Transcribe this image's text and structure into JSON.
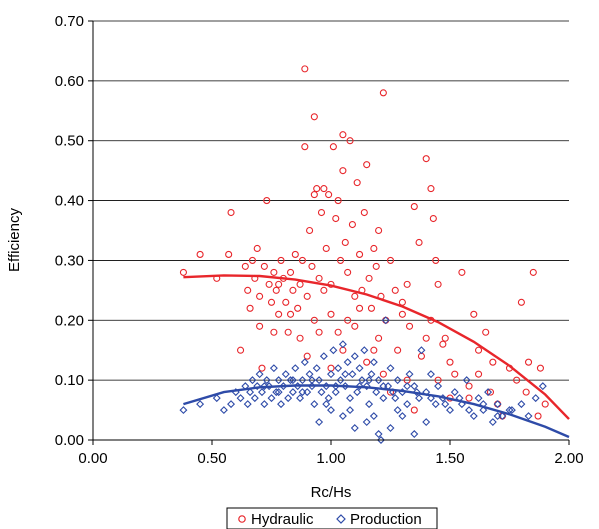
{
  "chart_data": {
    "type": "scatter",
    "xlabel": "Rc/Hs",
    "ylabel": "Efficiency",
    "xlim": [
      0,
      2
    ],
    "ylim": [
      0,
      0.7
    ],
    "x_ticks": [
      "0.00",
      "0.50",
      "1.00",
      "1.50",
      "2.00"
    ],
    "y_ticks": [
      "0.00",
      "0.10",
      "0.20",
      "0.30",
      "0.40",
      "0.50",
      "0.60",
      "0.70"
    ],
    "grid": "horizontal",
    "legend_position": "bottom",
    "series": [
      {
        "name": "Hydraulic",
        "marker": "circle",
        "color": "#e8262b",
        "points": [
          [
            0.38,
            0.28
          ],
          [
            0.45,
            0.31
          ],
          [
            0.52,
            0.27
          ],
          [
            0.57,
            0.31
          ],
          [
            0.58,
            0.38
          ],
          [
            0.62,
            0.15
          ],
          [
            0.64,
            0.29
          ],
          [
            0.65,
            0.25
          ],
          [
            0.66,
            0.22
          ],
          [
            0.67,
            0.3
          ],
          [
            0.68,
            0.27
          ],
          [
            0.69,
            0.32
          ],
          [
            0.7,
            0.24
          ],
          [
            0.7,
            0.19
          ],
          [
            0.71,
            0.12
          ],
          [
            0.72,
            0.29
          ],
          [
            0.73,
            0.4
          ],
          [
            0.74,
            0.26
          ],
          [
            0.75,
            0.23
          ],
          [
            0.76,
            0.28
          ],
          [
            0.77,
            0.25
          ],
          [
            0.78,
            0.21
          ],
          [
            0.79,
            0.3
          ],
          [
            0.8,
            0.27
          ],
          [
            0.81,
            0.23
          ],
          [
            0.82,
            0.18
          ],
          [
            0.83,
            0.28
          ],
          [
            0.84,
            0.25
          ],
          [
            0.85,
            0.31
          ],
          [
            0.86,
            0.22
          ],
          [
            0.87,
            0.26
          ],
          [
            0.88,
            0.3
          ],
          [
            0.89,
            0.62
          ],
          [
            0.89,
            0.49
          ],
          [
            0.9,
            0.24
          ],
          [
            0.91,
            0.35
          ],
          [
            0.92,
            0.29
          ],
          [
            0.93,
            0.54
          ],
          [
            0.93,
            0.41
          ],
          [
            0.94,
            0.42
          ],
          [
            0.95,
            0.27
          ],
          [
            0.96,
            0.38
          ],
          [
            0.97,
            0.42
          ],
          [
            0.98,
            0.32
          ],
          [
            0.99,
            0.41
          ],
          [
            1.0,
            0.26
          ],
          [
            1.01,
            0.49
          ],
          [
            1.02,
            0.37
          ],
          [
            1.03,
            0.4
          ],
          [
            1.04,
            0.3
          ],
          [
            1.05,
            0.51
          ],
          [
            1.05,
            0.45
          ],
          [
            1.06,
            0.33
          ],
          [
            1.07,
            0.28
          ],
          [
            1.08,
            0.5
          ],
          [
            1.09,
            0.36
          ],
          [
            1.1,
            0.24
          ],
          [
            1.11,
            0.43
          ],
          [
            1.12,
            0.31
          ],
          [
            1.13,
            0.25
          ],
          [
            1.14,
            0.38
          ],
          [
            1.15,
            0.46
          ],
          [
            1.16,
            0.27
          ],
          [
            1.17,
            0.22
          ],
          [
            1.18,
            0.32
          ],
          [
            1.19,
            0.29
          ],
          [
            1.2,
            0.35
          ],
          [
            1.21,
            0.24
          ],
          [
            1.22,
            0.58
          ],
          [
            1.23,
            0.2
          ],
          [
            1.25,
            0.3
          ],
          [
            1.27,
            0.25
          ],
          [
            1.3,
            0.23
          ],
          [
            1.32,
            0.26
          ],
          [
            1.33,
            0.19
          ],
          [
            1.35,
            0.39
          ],
          [
            1.37,
            0.33
          ],
          [
            1.4,
            0.47
          ],
          [
            1.42,
            0.42
          ],
          [
            1.43,
            0.37
          ],
          [
            1.44,
            0.3
          ],
          [
            1.45,
            0.26
          ],
          [
            1.47,
            0.16
          ],
          [
            1.5,
            0.13
          ],
          [
            1.55,
            0.28
          ],
          [
            1.58,
            0.09
          ],
          [
            1.6,
            0.21
          ],
          [
            1.62,
            0.11
          ],
          [
            1.65,
            0.18
          ],
          [
            1.68,
            0.13
          ],
          [
            1.7,
            0.06
          ],
          [
            1.75,
            0.12
          ],
          [
            1.8,
            0.23
          ],
          [
            1.82,
            0.08
          ],
          [
            1.85,
            0.28
          ],
          [
            1.88,
            0.12
          ],
          [
            1.9,
            0.06
          ],
          [
            0.95,
            0.18
          ],
          [
            1.0,
            0.12
          ],
          [
            1.05,
            0.15
          ],
          [
            1.1,
            0.19
          ],
          [
            1.15,
            0.13
          ],
          [
            1.2,
            0.17
          ],
          [
            1.25,
            0.08
          ],
          [
            1.3,
            0.21
          ],
          [
            1.35,
            0.05
          ],
          [
            1.4,
            0.17
          ],
          [
            1.45,
            0.1
          ],
          [
            1.5,
            0.07
          ],
          [
            0.76,
            0.18
          ],
          [
            0.9,
            0.14
          ],
          [
            1.12,
            0.22
          ],
          [
            1.0,
            0.21
          ],
          [
            1.07,
            0.2
          ],
          [
            1.03,
            0.18
          ],
          [
            0.97,
            0.25
          ],
          [
            0.93,
            0.2
          ],
          [
            0.87,
            0.17
          ],
          [
            0.83,
            0.21
          ],
          [
            0.78,
            0.26
          ],
          [
            1.18,
            0.15
          ],
          [
            1.22,
            0.11
          ],
          [
            1.28,
            0.15
          ],
          [
            1.32,
            0.1
          ],
          [
            1.38,
            0.14
          ],
          [
            1.42,
            0.2
          ],
          [
            1.48,
            0.17
          ],
          [
            1.52,
            0.11
          ],
          [
            1.58,
            0.07
          ],
          [
            1.62,
            0.15
          ],
          [
            1.67,
            0.08
          ],
          [
            1.72,
            0.04
          ],
          [
            1.78,
            0.1
          ],
          [
            1.83,
            0.13
          ],
          [
            1.87,
            0.04
          ]
        ]
      },
      {
        "name": "Production",
        "marker": "diamond",
        "color": "#2e4ba8",
        "points": [
          [
            0.38,
            0.05
          ],
          [
            0.45,
            0.06
          ],
          [
            0.52,
            0.07
          ],
          [
            0.55,
            0.05
          ],
          [
            0.58,
            0.06
          ],
          [
            0.6,
            0.08
          ],
          [
            0.62,
            0.07
          ],
          [
            0.64,
            0.09
          ],
          [
            0.65,
            0.06
          ],
          [
            0.66,
            0.08
          ],
          [
            0.67,
            0.1
          ],
          [
            0.68,
            0.07
          ],
          [
            0.69,
            0.09
          ],
          [
            0.7,
            0.11
          ],
          [
            0.71,
            0.08
          ],
          [
            0.72,
            0.06
          ],
          [
            0.73,
            0.1
          ],
          [
            0.74,
            0.09
          ],
          [
            0.75,
            0.07
          ],
          [
            0.76,
            0.12
          ],
          [
            0.77,
            0.08
          ],
          [
            0.78,
            0.1
          ],
          [
            0.79,
            0.06
          ],
          [
            0.8,
            0.09
          ],
          [
            0.81,
            0.11
          ],
          [
            0.82,
            0.07
          ],
          [
            0.83,
            0.1
          ],
          [
            0.84,
            0.08
          ],
          [
            0.85,
            0.12
          ],
          [
            0.86,
            0.09
          ],
          [
            0.87,
            0.07
          ],
          [
            0.88,
            0.1
          ],
          [
            0.89,
            0.13
          ],
          [
            0.9,
            0.08
          ],
          [
            0.91,
            0.11
          ],
          [
            0.92,
            0.09
          ],
          [
            0.93,
            0.06
          ],
          [
            0.94,
            0.12
          ],
          [
            0.95,
            0.1
          ],
          [
            0.96,
            0.08
          ],
          [
            0.97,
            0.14
          ],
          [
            0.98,
            0.09
          ],
          [
            0.99,
            0.07
          ],
          [
            1.0,
            0.11
          ],
          [
            1.01,
            0.15
          ],
          [
            1.02,
            0.08
          ],
          [
            1.03,
            0.12
          ],
          [
            1.04,
            0.1
          ],
          [
            1.05,
            0.16
          ],
          [
            1.06,
            0.09
          ],
          [
            1.07,
            0.13
          ],
          [
            1.08,
            0.07
          ],
          [
            1.09,
            0.11
          ],
          [
            1.1,
            0.14
          ],
          [
            1.11,
            0.08
          ],
          [
            1.12,
            0.12
          ],
          [
            1.13,
            0.1
          ],
          [
            1.14,
            0.15
          ],
          [
            1.15,
            0.09
          ],
          [
            1.16,
            0.06
          ],
          [
            1.17,
            0.11
          ],
          [
            1.18,
            0.13
          ],
          [
            1.19,
            0.08
          ],
          [
            1.2,
            0.1
          ],
          [
            1.21,
            0.0
          ],
          [
            1.22,
            0.07
          ],
          [
            1.23,
            0.2
          ],
          [
            1.24,
            0.09
          ],
          [
            1.25,
            0.12
          ],
          [
            1.27,
            0.07
          ],
          [
            1.28,
            0.1
          ],
          [
            1.3,
            0.08
          ],
          [
            1.32,
            0.06
          ],
          [
            1.33,
            0.11
          ],
          [
            1.35,
            0.09
          ],
          [
            1.37,
            0.07
          ],
          [
            1.38,
            0.15
          ],
          [
            1.4,
            0.08
          ],
          [
            1.42,
            0.11
          ],
          [
            1.44,
            0.06
          ],
          [
            1.45,
            0.09
          ],
          [
            1.47,
            0.07
          ],
          [
            1.5,
            0.05
          ],
          [
            1.52,
            0.08
          ],
          [
            1.55,
            0.06
          ],
          [
            1.57,
            0.1
          ],
          [
            1.6,
            0.04
          ],
          [
            1.62,
            0.07
          ],
          [
            1.64,
            0.05
          ],
          [
            1.66,
            0.08
          ],
          [
            1.68,
            0.03
          ],
          [
            1.7,
            0.06
          ],
          [
            1.72,
            0.04
          ],
          [
            1.75,
            0.05
          ],
          [
            1.8,
            0.06
          ],
          [
            1.83,
            0.04
          ],
          [
            1.86,
            0.07
          ],
          [
            1.89,
            0.09
          ],
          [
            0.95,
            0.03
          ],
          [
            1.0,
            0.05
          ],
          [
            1.05,
            0.04
          ],
          [
            1.1,
            0.02
          ],
          [
            1.15,
            0.03
          ],
          [
            1.2,
            0.01
          ],
          [
            1.25,
            0.02
          ],
          [
            1.3,
            0.04
          ],
          [
            1.35,
            0.01
          ],
          [
            1.4,
            0.03
          ],
          [
            0.98,
            0.06
          ],
          [
            1.08,
            0.05
          ],
          [
            1.18,
            0.04
          ],
          [
            1.28,
            0.05
          ],
          [
            0.72,
            0.09
          ],
          [
            0.78,
            0.08
          ],
          [
            0.84,
            0.1
          ],
          [
            0.88,
            0.08
          ],
          [
            0.92,
            0.1
          ],
          [
            1.02,
            0.09
          ],
          [
            1.06,
            0.11
          ],
          [
            1.12,
            0.09
          ],
          [
            1.16,
            0.1
          ],
          [
            1.22,
            0.09
          ],
          [
            1.26,
            0.08
          ],
          [
            1.32,
            0.09
          ],
          [
            1.36,
            0.08
          ],
          [
            1.42,
            0.07
          ],
          [
            1.48,
            0.06
          ],
          [
            1.54,
            0.07
          ],
          [
            1.58,
            0.05
          ],
          [
            1.64,
            0.06
          ],
          [
            1.7,
            0.04
          ],
          [
            1.76,
            0.05
          ]
        ]
      }
    ],
    "trendlines": [
      {
        "series": "Hydraulic",
        "color": "#e8262b",
        "x": [
          0.38,
          0.55,
          0.7,
          0.85,
          1.0,
          1.15,
          1.3,
          1.45,
          1.6,
          1.75,
          1.9,
          2.0
        ],
        "y": [
          0.272,
          0.275,
          0.274,
          0.268,
          0.258,
          0.243,
          0.223,
          0.197,
          0.164,
          0.124,
          0.076,
          0.035
        ]
      },
      {
        "series": "Production",
        "color": "#2e4ba8",
        "x": [
          0.38,
          0.55,
          0.7,
          0.85,
          1.0,
          1.15,
          1.3,
          1.45,
          1.6,
          1.75,
          1.9,
          2.0
        ],
        "y": [
          0.06,
          0.08,
          0.088,
          0.091,
          0.091,
          0.088,
          0.082,
          0.073,
          0.06,
          0.043,
          0.022,
          0.005
        ]
      }
    ]
  }
}
